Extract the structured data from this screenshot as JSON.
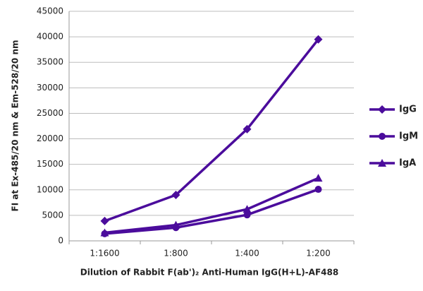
{
  "chart_data": {
    "type": "line",
    "x_label": "Dilution of Rabbit F(ab')₂ Anti-Human IgG(H+L)-AF488",
    "y_label": "FI at Ex-485/20 nm & Em-528/20 nm",
    "categories": [
      "1:1600",
      "1:800",
      "1:400",
      "1:200"
    ],
    "series": [
      {
        "name": "IgG",
        "color": "#4b0c9c",
        "marker": "diamond",
        "values": [
          3900,
          9000,
          21900,
          39500
        ]
      },
      {
        "name": "IgM",
        "color": "#4b0c9c",
        "marker": "circle",
        "values": [
          1400,
          2600,
          5100,
          10100
        ]
      },
      {
        "name": "IgA",
        "color": "#4b0c9c",
        "marker": "triangle",
        "values": [
          1600,
          3100,
          6200,
          12300
        ]
      }
    ],
    "ylim": [
      0,
      45000
    ],
    "yticks": [
      0,
      5000,
      10000,
      15000,
      20000,
      25000,
      30000,
      35000,
      40000,
      45000
    ],
    "grid": true,
    "legend": "right"
  }
}
